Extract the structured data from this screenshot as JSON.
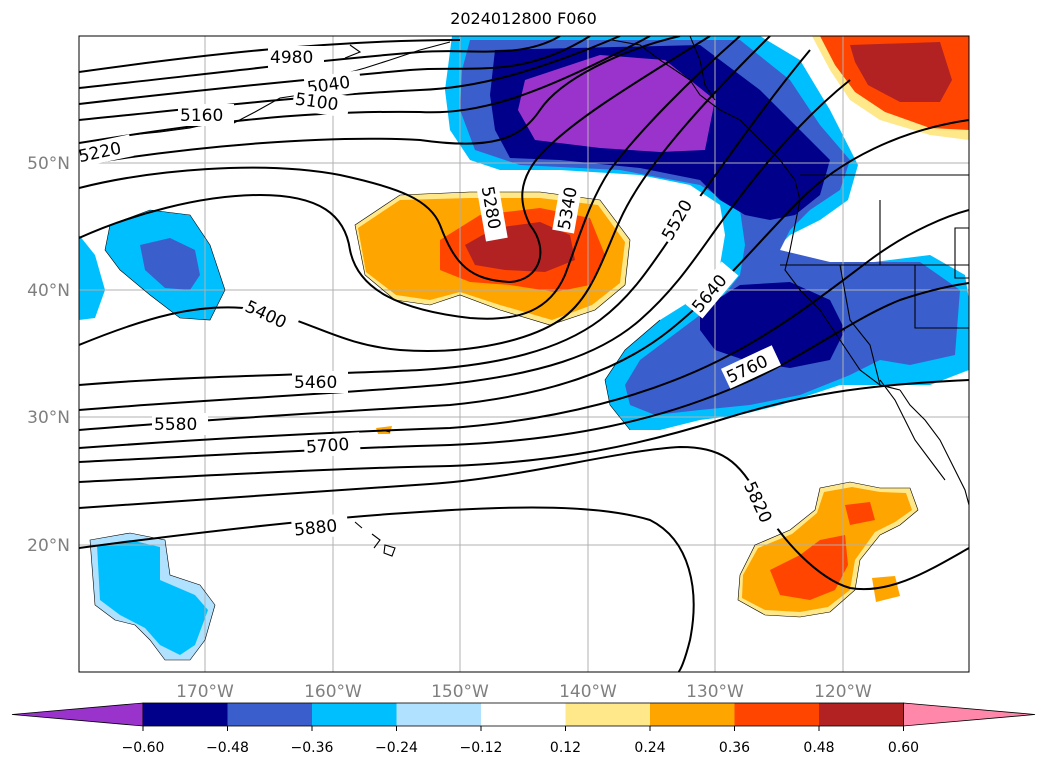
{
  "title": "2024012800 F060",
  "map": {
    "lat_labels": [
      "50°N",
      "40°N",
      "30°N",
      "20°N"
    ],
    "lon_labels": [
      "170°W",
      "160°W",
      "150°W",
      "140°W",
      "130°W",
      "120°W"
    ],
    "contour_labels": [
      "4980",
      "5040",
      "5100",
      "5160",
      "5220",
      "5280",
      "5340",
      "5400",
      "5460",
      "5520",
      "5580",
      "5640",
      "5700",
      "5760",
      "5820",
      "5880"
    ]
  },
  "colorbar": {
    "ticks": [
      "−0.60",
      "−0.48",
      "−0.36",
      "−0.24",
      "−0.12",
      "0.12",
      "0.24",
      "0.36",
      "0.48",
      "0.60"
    ],
    "colors": [
      "#9933cc",
      "#00008b",
      "#3a5fcd",
      "#00bfff",
      "#b0e2ff",
      "#ffffff",
      "#ffe88a",
      "#ffa500",
      "#ff4500",
      "#b22222",
      "#ff88aa"
    ]
  }
}
